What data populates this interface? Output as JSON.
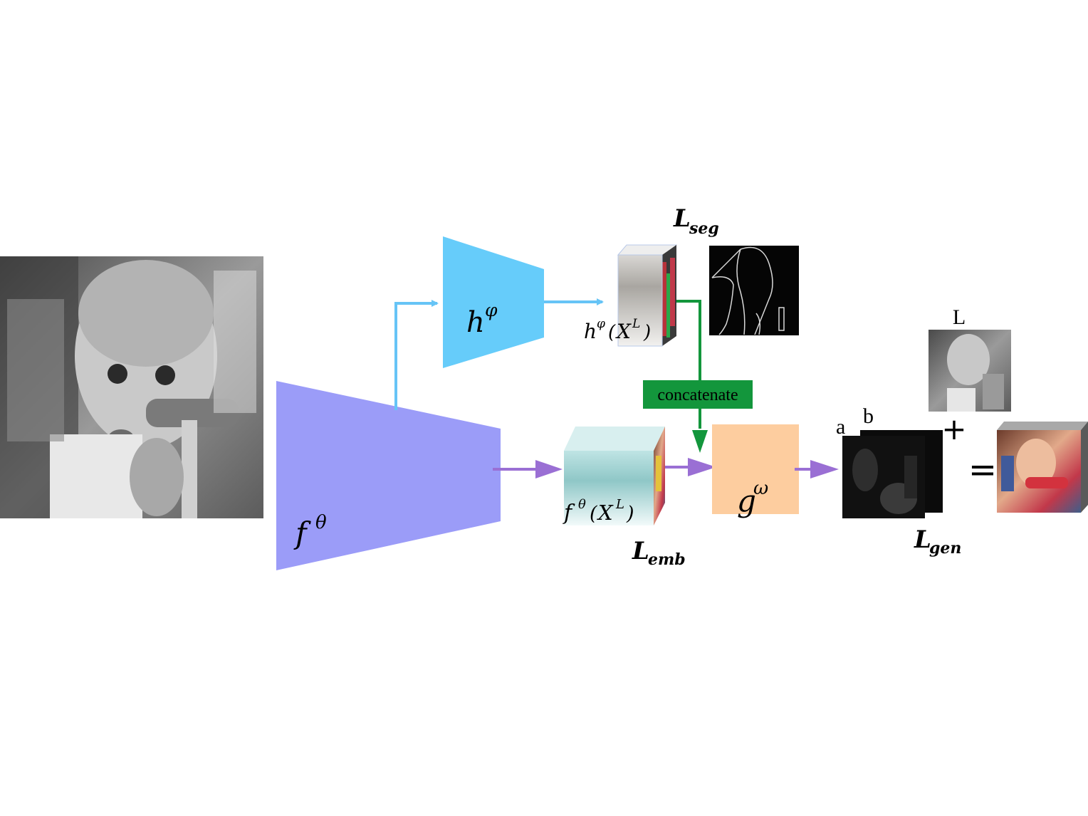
{
  "nodes": {
    "encoder": {
      "symbol": "f",
      "superscript": "θ",
      "color": "#9b9cf8"
    },
    "seg_head": {
      "symbol": "h",
      "superscript": "φ",
      "color": "#66ccfa"
    },
    "generator": {
      "symbol": "g",
      "superscript": "ω",
      "color": "#fdcd9f"
    }
  },
  "features": {
    "seg": {
      "label": "hφ(XL)",
      "fn": "h",
      "fn_sup": "φ",
      "arg": "X",
      "arg_sup": "L"
    },
    "emb": {
      "label": "fθ(XL)",
      "fn": "f",
      "fn_sup": "θ",
      "arg": "X",
      "arg_sup": "L"
    }
  },
  "losses": {
    "seg": {
      "main": "L",
      "sub": "seg"
    },
    "emb": {
      "main": "L",
      "sub": "emb"
    },
    "gen": {
      "main": "L",
      "sub": "gen"
    }
  },
  "concat": {
    "label": "concatenate",
    "color": "#13963c"
  },
  "output_labels": {
    "a": "a",
    "b": "b",
    "L": "L",
    "plus": "+",
    "equals": "="
  },
  "colors": {
    "encoder_arrow": "#66c4f6",
    "decoder_arrow": "#9a6fd4",
    "concat_arrow": "#13963c"
  }
}
